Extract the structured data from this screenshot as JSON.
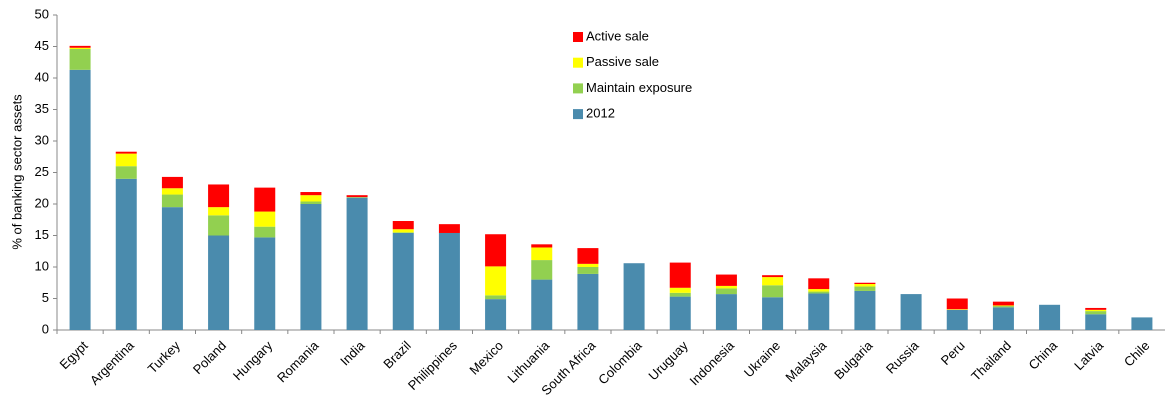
{
  "chart_data": {
    "type": "stacked-bar",
    "y_label": "% of banking sector assets",
    "categories": [
      "Egypt",
      "Argentina",
      "Turkey",
      "Poland",
      "Hungary",
      "Romania",
      "India",
      "Brazil",
      "Philippines",
      "Mexico",
      "Lithuania",
      "South Africa",
      "Colombia",
      "Uruguay",
      "Indonesia",
      "Ukraine",
      "Malaysia",
      "Bulgaria",
      "Russia",
      "Peru",
      "Thailand",
      "China",
      "Latvia",
      "Chile"
    ],
    "series": [
      {
        "name": "2012",
        "color": "#4a8bad",
        "values": [
          41.3,
          24.0,
          19.5,
          15.0,
          14.7,
          20.0,
          21.0,
          15.4,
          15.4,
          4.9,
          8.0,
          8.9,
          10.6,
          5.3,
          5.7,
          5.2,
          5.8,
          6.2,
          5.7,
          3.2,
          3.6,
          4.0,
          2.5,
          2.0
        ]
      },
      {
        "name": "Maintain exposure",
        "color": "#92d050",
        "values": [
          3.3,
          2.0,
          2.0,
          3.2,
          1.7,
          0.4,
          0.1,
          0.1,
          0,
          0.6,
          3.1,
          1.1,
          0,
          0.6,
          0.9,
          1.9,
          0.3,
          0.7,
          0,
          0,
          0.2,
          0,
          0.5,
          0
        ]
      },
      {
        "name": "Passive sale",
        "color": "#ffff00",
        "values": [
          0.2,
          2.0,
          1.0,
          1.3,
          2.4,
          1.0,
          0,
          0.5,
          0,
          4.6,
          2.0,
          0.5,
          0,
          0.8,
          0.4,
          1.3,
          0.4,
          0.4,
          0,
          0.1,
          0.1,
          0,
          0.2,
          0
        ]
      },
      {
        "name": "Active sale",
        "color": "#ff0000",
        "values": [
          0.3,
          0.3,
          1.8,
          3.6,
          3.8,
          0.5,
          0.3,
          1.3,
          1.4,
          5.1,
          0.5,
          2.5,
          0,
          4.0,
          1.8,
          0.3,
          1.7,
          0.2,
          0,
          1.7,
          0.6,
          0,
          0.3,
          0
        ]
      }
    ],
    "ylim": [
      0,
      50
    ],
    "yticks": [
      0,
      5,
      10,
      15,
      20,
      25,
      30,
      35,
      40,
      45,
      50
    ],
    "grid": false
  }
}
